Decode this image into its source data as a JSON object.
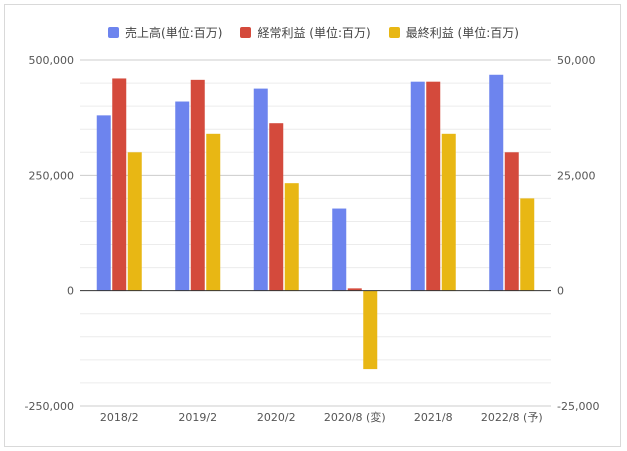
{
  "chart_data": {
    "type": "bar",
    "categories": [
      "2018/2",
      "2019/2",
      "2020/2",
      "2020/8 (変)",
      "2021/8",
      "2022/8 (予)"
    ],
    "series": [
      {
        "name": "売上高(単位:百万)",
        "color": "#6d84ee",
        "axis": "left",
        "values": [
          380000,
          410000,
          438000,
          178000,
          453000,
          468000
        ]
      },
      {
        "name": "経常利益 (単位:百万)",
        "color": "#d44a3c",
        "axis": "right",
        "values": [
          46000,
          45700,
          36300,
          500,
          45300,
          30000
        ]
      },
      {
        "name": "最終利益 (単位:百万)",
        "color": "#e8b714",
        "axis": "right",
        "values": [
          30000,
          34000,
          23300,
          -17000,
          34000,
          20000
        ]
      }
    ],
    "y_left": {
      "ylim": [
        -250000,
        500000
      ],
      "ticks": [
        "500,000",
        "250,000",
        "0",
        "-250,000"
      ],
      "tick_values": [
        500000,
        250000,
        0,
        -250000
      ]
    },
    "y_right": {
      "ylim": [
        -25000,
        50000
      ],
      "ticks": [
        "50,000",
        "25,000",
        "0",
        "-25,000"
      ],
      "tick_values": [
        50000,
        25000,
        0,
        -25000
      ]
    },
    "legend_position": "top",
    "grid": true
  }
}
